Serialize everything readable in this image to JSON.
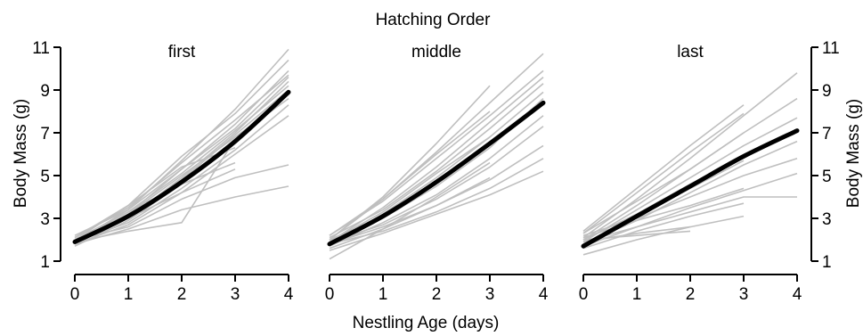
{
  "chart_data": {
    "type": "line",
    "title": "Hatching Order",
    "xlabel": "Nestling Age (days)",
    "ylabel": "Body Mass (g)",
    "xlim": [
      0,
      4
    ],
    "ylim": [
      1,
      11
    ],
    "xticks": [
      0,
      1,
      2,
      3,
      4
    ],
    "yticks": [
      1,
      3,
      5,
      7,
      9,
      11
    ],
    "grid": false,
    "legend": "none",
    "colors": {
      "individual": "#bfbfbf",
      "mean": "#000000"
    },
    "panels": [
      {
        "name": "first",
        "mean": {
          "x": [
            0,
            1,
            2,
            3,
            4
          ],
          "y": [
            1.9,
            3.1,
            4.7,
            6.6,
            8.9
          ]
        },
        "individuals": [
          {
            "x": [
              0,
              1,
              2,
              3,
              4
            ],
            "y": [
              1.9,
              3.4,
              5.7,
              8.1,
              10.9
            ]
          },
          {
            "x": [
              0,
              1,
              2,
              3,
              4
            ],
            "y": [
              2.0,
              3.6,
              5.9,
              7.9,
              10.4
            ]
          },
          {
            "x": [
              0,
              1,
              2,
              3,
              4
            ],
            "y": [
              1.8,
              3.2,
              5.3,
              7.4,
              9.9
            ]
          },
          {
            "x": [
              0,
              1,
              2,
              3,
              4
            ],
            "y": [
              2.1,
              3.5,
              5.6,
              7.6,
              9.7
            ]
          },
          {
            "x": [
              0,
              1,
              2,
              3,
              4
            ],
            "y": [
              1.9,
              3.0,
              4.9,
              7.0,
              9.4
            ]
          },
          {
            "x": [
              0,
              1,
              2,
              3,
              4
            ],
            "y": [
              2.0,
              3.3,
              5.1,
              7.1,
              9.2
            ]
          },
          {
            "x": [
              0,
              1,
              2,
              3,
              4
            ],
            "y": [
              1.7,
              2.9,
              4.6,
              6.5,
              8.9
            ]
          },
          {
            "x": [
              0,
              1,
              2,
              3,
              4
            ],
            "y": [
              2.2,
              3.4,
              5.3,
              7.2,
              9.6
            ]
          },
          {
            "x": [
              0,
              1,
              2,
              3,
              4
            ],
            "y": [
              1.8,
              3.1,
              4.8,
              6.9,
              9.0
            ]
          },
          {
            "x": [
              0,
              1,
              2,
              3,
              4
            ],
            "y": [
              2.0,
              3.2,
              5.0,
              6.8,
              8.6
            ]
          },
          {
            "x": [
              0,
              1,
              2,
              3,
              4
            ],
            "y": [
              1.9,
              2.8,
              4.4,
              6.2,
              8.3
            ]
          },
          {
            "x": [
              0,
              1,
              2,
              3,
              4
            ],
            "y": [
              1.8,
              2.7,
              4.2,
              6.0,
              7.8
            ]
          },
          {
            "x": [
              0,
              1,
              2,
              3,
              4
            ],
            "y": [
              2.0,
              2.6,
              3.9,
              4.9,
              5.5
            ]
          },
          {
            "x": [
              0,
              1,
              2,
              3,
              4
            ],
            "y": [
              1.8,
              2.5,
              3.4,
              4.0,
              4.5
            ]
          },
          {
            "x": [
              0,
              1,
              2,
              3
            ],
            "y": [
              1.9,
              2.4,
              2.8,
              6.7
            ]
          },
          {
            "x": [
              0,
              1,
              2,
              3
            ],
            "y": [
              2.0,
              3.3,
              4.6,
              5.6
            ]
          },
          {
            "x": [
              0,
              1,
              2,
              3
            ],
            "y": [
              1.9,
              3.0,
              4.2,
              5.3
            ]
          },
          {
            "x": [
              0,
              1,
              2,
              3
            ],
            "y": [
              2.1,
              3.6,
              5.4,
              6.3
            ]
          }
        ]
      },
      {
        "name": "middle",
        "mean": {
          "x": [
            0,
            1,
            2,
            3,
            4
          ],
          "y": [
            1.8,
            3.1,
            4.7,
            6.5,
            8.4
          ]
        },
        "individuals": [
          {
            "x": [
              0,
              1,
              2,
              3,
              4
            ],
            "y": [
              2.0,
              3.9,
              6.1,
              8.4,
              10.7
            ]
          },
          {
            "x": [
              0,
              1,
              2,
              3,
              4
            ],
            "y": [
              2.2,
              3.8,
              5.8,
              7.8,
              9.9
            ]
          },
          {
            "x": [
              0,
              1,
              2,
              3,
              4
            ],
            "y": [
              1.9,
              3.5,
              5.4,
              7.5,
              9.6
            ]
          },
          {
            "x": [
              0,
              1,
              2,
              3,
              4
            ],
            "y": [
              2.1,
              3.4,
              5.2,
              7.2,
              9.3
            ]
          },
          {
            "x": [
              0,
              1,
              2,
              3,
              4
            ],
            "y": [
              1.8,
              3.2,
              4.9,
              6.8,
              8.9
            ]
          },
          {
            "x": [
              0,
              1,
              2,
              3,
              4
            ],
            "y": [
              2.0,
              3.0,
              4.5,
              6.3,
              8.6
            ]
          },
          {
            "x": [
              0,
              1,
              2,
              3,
              4
            ],
            "y": [
              1.7,
              2.8,
              4.1,
              5.8,
              7.8
            ]
          },
          {
            "x": [
              0,
              1,
              2,
              3,
              4
            ],
            "y": [
              1.9,
              2.7,
              3.9,
              5.4,
              7.3
            ]
          },
          {
            "x": [
              0,
              1,
              2,
              3,
              4
            ],
            "y": [
              1.6,
              2.5,
              3.6,
              4.8,
              6.4
            ]
          },
          {
            "x": [
              0,
              1,
              2,
              3,
              4
            ],
            "y": [
              1.8,
              2.4,
              3.3,
              4.4,
              5.8
            ]
          },
          {
            "x": [
              0,
              1,
              2,
              3,
              4
            ],
            "y": [
              1.5,
              2.3,
              3.2,
              4.1,
              5.2
            ]
          },
          {
            "x": [
              0,
              1,
              2,
              3
            ],
            "y": [
              2.0,
              4.0,
              6.5,
              9.2
            ]
          },
          {
            "x": [
              0,
              1,
              2,
              3
            ],
            "y": [
              2.2,
              3.9,
              6.0,
              8.0
            ]
          },
          {
            "x": [
              0,
              1,
              2,
              3
            ],
            "y": [
              1.9,
              3.3,
              5.1,
              6.8
            ]
          },
          {
            "x": [
              0,
              1,
              2,
              3
            ],
            "y": [
              1.1,
              2.5,
              4.0,
              5.6
            ]
          },
          {
            "x": [
              0,
              1,
              2,
              3
            ],
            "y": [
              1.8,
              2.6,
              3.6,
              4.9
            ]
          },
          {
            "x": [
              0,
              1,
              2
            ],
            "y": [
              2.0,
              3.1,
              4.6
            ]
          }
        ]
      },
      {
        "name": "last",
        "mean": {
          "x": [
            0,
            1,
            2,
            3,
            4
          ],
          "y": [
            1.7,
            3.1,
            4.5,
            5.9,
            7.1
          ]
        },
        "individuals": [
          {
            "x": [
              0,
              1,
              2,
              3,
              4
            ],
            "y": [
              2.1,
              3.9,
              5.8,
              7.8,
              9.8
            ]
          },
          {
            "x": [
              0,
              1,
              2,
              3,
              4
            ],
            "y": [
              2.3,
              3.8,
              5.3,
              7.0,
              8.6
            ]
          },
          {
            "x": [
              0,
              1,
              2,
              3,
              4
            ],
            "y": [
              1.9,
              3.4,
              4.9,
              6.4,
              7.7
            ]
          },
          {
            "x": [
              0,
              1,
              2,
              3,
              4
            ],
            "y": [
              2.0,
              3.2,
              4.6,
              5.9,
              7.1
            ]
          },
          {
            "x": [
              0,
              1,
              2,
              3,
              4
            ],
            "y": [
              1.8,
              2.9,
              4.2,
              5.5,
              6.6
            ]
          },
          {
            "x": [
              0,
              1,
              2,
              3,
              4
            ],
            "y": [
              2.2,
              3.0,
              4.0,
              5.0,
              5.8
            ]
          },
          {
            "x": [
              0,
              1,
              2,
              3,
              4
            ],
            "y": [
              1.7,
              2.6,
              3.5,
              4.3,
              5.1
            ]
          },
          {
            "x": [
              0,
              1,
              2,
              3,
              4
            ],
            "y": [
              1.9,
              2.6,
              3.3,
              4.0,
              4.0
            ]
          },
          {
            "x": [
              0,
              1,
              2,
              3
            ],
            "y": [
              2.4,
              4.4,
              6.4,
              8.3
            ]
          },
          {
            "x": [
              0,
              1,
              2,
              3
            ],
            "y": [
              2.3,
              4.2,
              6.1,
              7.9
            ]
          },
          {
            "x": [
              0,
              1,
              2,
              3
            ],
            "y": [
              2.0,
              3.6,
              5.3,
              7.0
            ]
          },
          {
            "x": [
              0,
              1,
              2,
              3
            ],
            "y": [
              1.8,
              3.1,
              4.4,
              5.7
            ]
          },
          {
            "x": [
              0,
              1,
              2,
              3
            ],
            "y": [
              2.1,
              2.9,
              3.6,
              4.4
            ]
          },
          {
            "x": [
              0,
              1,
              2,
              3
            ],
            "y": [
              1.6,
              2.4,
              3.1,
              3.7
            ]
          },
          {
            "x": [
              0,
              1,
              2,
              3
            ],
            "y": [
              1.3,
              2.0,
              2.6,
              3.1
            ]
          },
          {
            "x": [
              0,
              1,
              2
            ],
            "y": [
              1.9,
              2.3,
              2.6
            ]
          },
          {
            "x": [
              0,
              1,
              2
            ],
            "y": [
              2.0,
              2.2,
              2.4
            ]
          }
        ]
      }
    ]
  }
}
